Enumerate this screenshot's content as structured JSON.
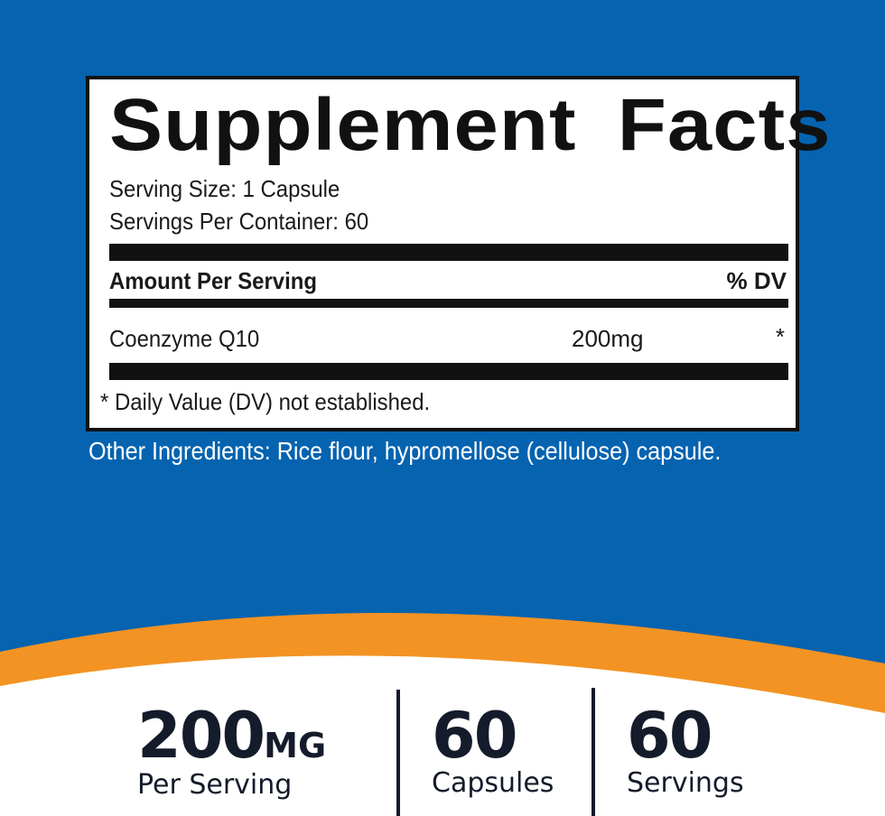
{
  "label": {
    "title": "Supplement Facts",
    "serving_size": "Serving Size: 1 Capsule",
    "servings_per_container": "Servings Per Container: 60",
    "amount_header": "Amount Per Serving",
    "dv_header": "% DV",
    "ingredients": [
      {
        "name": "Coenzyme Q10",
        "amount": "200mg",
        "dv": "*"
      }
    ],
    "footnote": "* Daily Value (DV) not established."
  },
  "other_ingredients": "Other Ingredients: Rice flour, hypromellose (cellulose) capsule.",
  "stats": [
    {
      "value": "200",
      "unit": "MG",
      "label": "Per Serving"
    },
    {
      "value": "60",
      "label": "Capsules"
    },
    {
      "value": "60",
      "label": "Servings"
    }
  ],
  "colors": {
    "background": "#0563b0",
    "accent": "#f39323",
    "text_dark": "#141b2a"
  }
}
